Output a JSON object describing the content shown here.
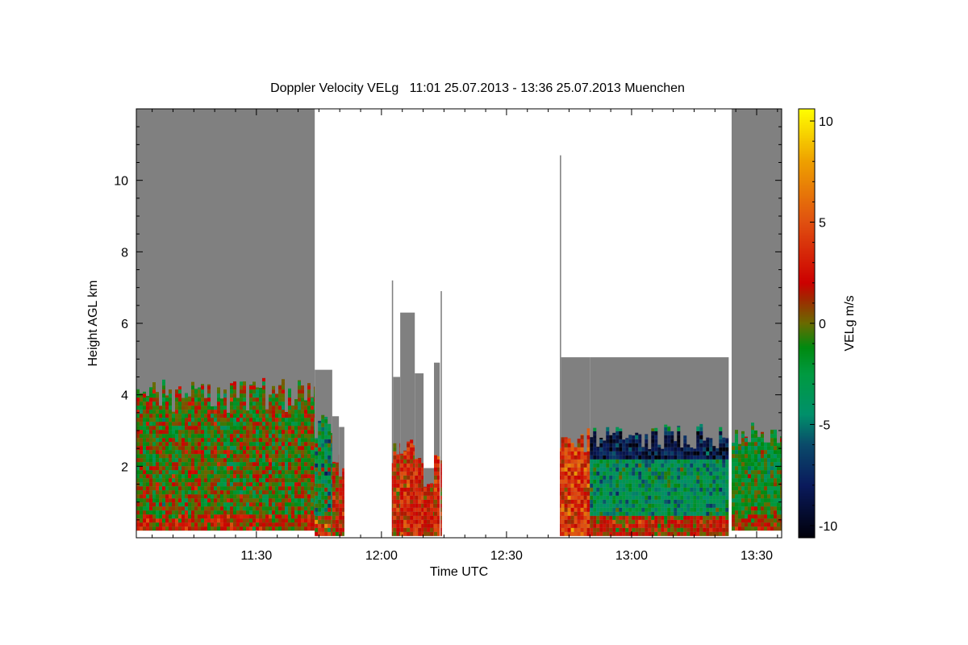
{
  "chart_data": {
    "type": "heatmap",
    "title": "Doppler Velocity VELg   11:01 25.07.2013 - 13:36 25.07.2013 Muenchen",
    "xlabel": "Time UTC",
    "ylabel": "Height AGL km",
    "x_range_minutes_after_1100": [
      1.2,
      156.0
    ],
    "x_ticks": [
      {
        "label": "11:30",
        "minute": 30
      },
      {
        "label": "12:00",
        "minute": 60
      },
      {
        "label": "12:30",
        "minute": 90
      },
      {
        "label": "13:00",
        "minute": 120
      },
      {
        "label": "13:30",
        "minute": 150
      }
    ],
    "ylim": [
      0,
      12
    ],
    "y_ticks": [
      {
        "label": "2",
        "value": 2
      },
      {
        "label": "4",
        "value": 4
      },
      {
        "label": "6",
        "value": 6
      },
      {
        "label": "8",
        "value": 8
      },
      {
        "label": "10",
        "value": 10
      }
    ],
    "colorbar": {
      "label": "VELg m/s",
      "range": [
        -10.6,
        10.6
      ],
      "ticks": [
        {
          "label": "10",
          "value": 10
        },
        {
          "label": "5",
          "value": 5
        },
        {
          "label": "0",
          "value": 0
        },
        {
          "label": "-5",
          "value": -5
        },
        {
          "label": "-10",
          "value": -10
        }
      ],
      "stops": [
        [
          -10.6,
          "#00000a"
        ],
        [
          -8,
          "#0a1a5c"
        ],
        [
          -6,
          "#0a4a6a"
        ],
        [
          -4.5,
          "#00906a"
        ],
        [
          -2.5,
          "#009a40"
        ],
        [
          -1.2,
          "#008a10"
        ],
        [
          0,
          "#6a6a00"
        ],
        [
          1.2,
          "#a02800"
        ],
        [
          2,
          "#cc0000"
        ],
        [
          5,
          "#e05010"
        ],
        [
          8,
          "#eea000"
        ],
        [
          10.6,
          "#ffff00"
        ]
      ]
    },
    "no_signal_color": "#808080",
    "segments": [
      {
        "t0": 1.2,
        "t1": 44.0,
        "top_km": 12,
        "bottom_km": 0.2,
        "signal_top_km": 4.1,
        "mean_ms": -0.3,
        "spread_ms": 2.8
      },
      {
        "t0": 44.0,
        "t1": 48.2,
        "top_km": 4.7,
        "bottom_km": 0.05,
        "signal_top_km": 3.2,
        "mean_ms": -2.5,
        "spread_ms": 3.5
      },
      {
        "t0": 48.2,
        "t1": 49.8,
        "top_km": 3.4,
        "bottom_km": 0.05,
        "signal_top_km": 2.4,
        "mean_ms": 1.5,
        "spread_ms": 2.5
      },
      {
        "t0": 49.8,
        "t1": 51.1,
        "top_km": 3.1,
        "bottom_km": 0.05,
        "signal_top_km": 2.0,
        "mean_ms": 2.0,
        "spread_ms": 2.0
      },
      {
        "t0": 62.5,
        "t1": 62.8,
        "top_km": 7.2,
        "bottom_km": 0.05,
        "signal_top_km": 2.0,
        "mean_ms": 2.0,
        "spread_ms": 2.0
      },
      {
        "t0": 62.8,
        "t1": 64.5,
        "top_km": 4.5,
        "bottom_km": 0.05,
        "signal_top_km": 2.6,
        "mean_ms": 2.5,
        "spread_ms": 3.0
      },
      {
        "t0": 64.5,
        "t1": 68.0,
        "top_km": 6.3,
        "bottom_km": 0.05,
        "signal_top_km": 2.6,
        "mean_ms": 3.0,
        "spread_ms": 2.5
      },
      {
        "t0": 68.0,
        "t1": 70.1,
        "top_km": 4.6,
        "bottom_km": 0.05,
        "signal_top_km": 2.4,
        "mean_ms": 3.0,
        "spread_ms": 2.5
      },
      {
        "t0": 70.1,
        "t1": 72.6,
        "top_km": 1.95,
        "bottom_km": 0.05,
        "signal_top_km": 1.4,
        "mean_ms": 2.5,
        "spread_ms": 2.0
      },
      {
        "t0": 72.6,
        "t1": 74.0,
        "top_km": 4.9,
        "bottom_km": 0.05,
        "signal_top_km": 2.4,
        "mean_ms": 3.0,
        "spread_ms": 2.5
      },
      {
        "t0": 74.2,
        "t1": 74.5,
        "top_km": 6.9,
        "bottom_km": 0.05,
        "signal_top_km": 2.0,
        "mean_ms": 2.0,
        "spread_ms": 2.0
      },
      {
        "t0": 102.8,
        "t1": 103.1,
        "top_km": 10.7,
        "bottom_km": 0.05,
        "signal_top_km": 2.8,
        "mean_ms": 3.0,
        "spread_ms": 2.0
      },
      {
        "t0": 103.1,
        "t1": 110.0,
        "top_km": 5.05,
        "bottom_km": 0.05,
        "signal_top_km": 2.8,
        "mean_ms": 4.0,
        "spread_ms": 3.0
      },
      {
        "t0": 110.0,
        "t1": 143.3,
        "top_km": 5.05,
        "bottom_km": 0.05,
        "signal_top_km": 2.9,
        "mean_ms": -3.5,
        "spread_ms": 2.5,
        "band": {
          "from_km": 2.1,
          "to_km": 2.9,
          "mean_ms": -8.5
        }
      },
      {
        "t0": 144.0,
        "t1": 156.0,
        "top_km": 12,
        "bottom_km": 0.2,
        "signal_top_km": 3.0,
        "mean_ms": -1.5,
        "spread_ms": 2.5
      }
    ]
  }
}
